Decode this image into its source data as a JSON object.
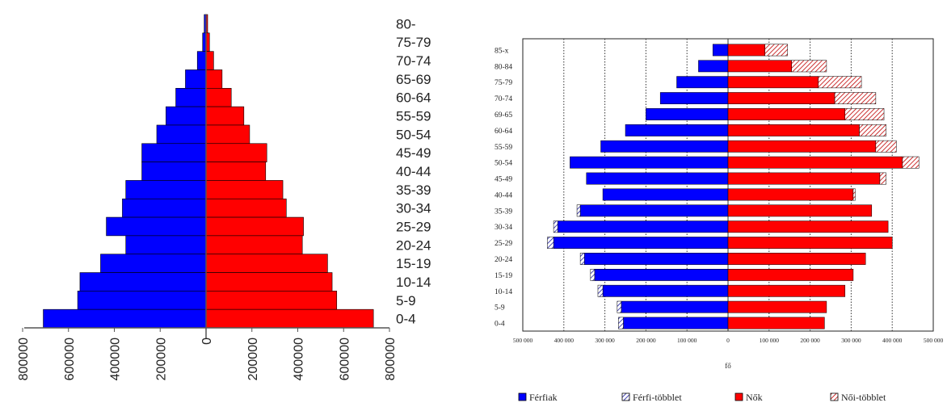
{
  "chart_data": [
    {
      "type": "bar",
      "orientation": "horizontal",
      "layout": "population-pyramid",
      "categories": [
        "80-",
        "75-79",
        "70-74",
        "65-69",
        "60-64",
        "55-59",
        "50-54",
        "45-49",
        "40-44",
        "35-39",
        "30-34",
        "25-29",
        "20-24",
        "15-19",
        "10-14",
        "5-9",
        "0-4"
      ],
      "series": [
        {
          "values": [
            8000,
            15000,
            38000,
            90000,
            132000,
            175000,
            215000,
            280000,
            280000,
            350000,
            365000,
            435000,
            350000,
            460000,
            550000,
            560000,
            710000
          ],
          "color": "#0000ff",
          "side": "left"
        },
        {
          "values": [
            7000,
            15000,
            33000,
            70000,
            110000,
            165000,
            190000,
            265000,
            260000,
            335000,
            350000,
            425000,
            420000,
            530000,
            550000,
            570000,
            730000
          ],
          "color": "#ff0000",
          "side": "right"
        }
      ],
      "xlim": [
        -800000,
        800000
      ],
      "x_ticks": [
        "800000",
        "600000",
        "400000",
        "200000",
        "0",
        "200000",
        "400000",
        "600000",
        "800000"
      ],
      "grid": false
    },
    {
      "type": "bar",
      "orientation": "horizontal",
      "layout": "population-pyramid",
      "categories": [
        "85-x",
        "80-84",
        "75-79",
        "70-74",
        "69-65",
        "60-64",
        "55-59",
        "50-54",
        "45-49",
        "40-44",
        "35-39",
        "30-34",
        "25-29",
        "20-24",
        "15-19",
        "10-14",
        "5-9",
        "0-4"
      ],
      "series": [
        {
          "name": "Férfiak",
          "values": [
            37000,
            72000,
            125000,
            165000,
            200000,
            250000,
            310000,
            385000,
            345000,
            305000,
            360000,
            415000,
            425000,
            350000,
            325000,
            305000,
            260000,
            255000
          ],
          "color": "#0000ff",
          "side": "left"
        },
        {
          "name": "Férfi-többlet",
          "values": [
            0,
            0,
            0,
            0,
            0,
            0,
            0,
            0,
            0,
            0,
            8000,
            10000,
            15000,
            10000,
            10000,
            12000,
            10000,
            12000
          ],
          "color": "#0000ff",
          "pattern": "hatched",
          "side": "left"
        },
        {
          "name": "Nők",
          "values": [
            90000,
            155000,
            220000,
            260000,
            285000,
            320000,
            360000,
            425000,
            370000,
            305000,
            350000,
            390000,
            400000,
            335000,
            305000,
            285000,
            240000,
            235000
          ],
          "color": "#ff0000",
          "side": "right"
        },
        {
          "name": "Női-többlet",
          "values": [
            55000,
            85000,
            105000,
            100000,
            95000,
            65000,
            50000,
            40000,
            15000,
            5000,
            0,
            0,
            0,
            0,
            0,
            0,
            0,
            0
          ],
          "color": "#ff0000",
          "pattern": "hatched",
          "side": "right"
        }
      ],
      "xlim": [
        -500000,
        500000
      ],
      "x_ticks": [
        "500 000",
        "400 000",
        "300 000",
        "200 000",
        "100 000",
        "0",
        "100 000",
        "200 000",
        "300 000",
        "400 000",
        "500 000"
      ],
      "xlabel": "fő",
      "grid": true,
      "legend_position": "bottom"
    }
  ]
}
